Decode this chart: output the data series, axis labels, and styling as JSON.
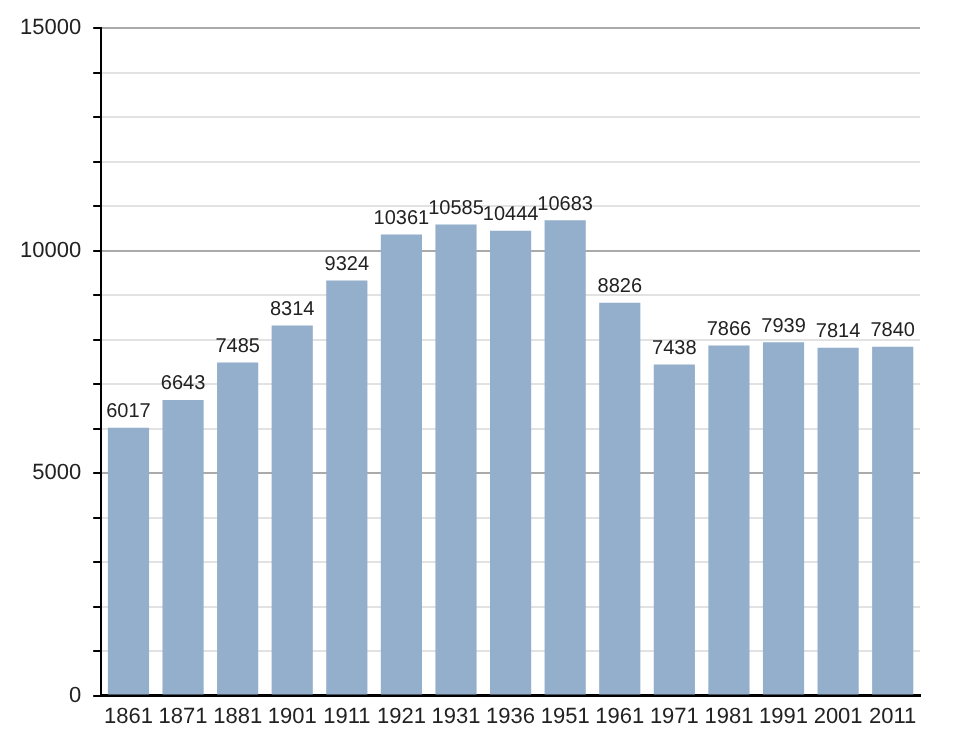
{
  "chart_data": {
    "type": "bar",
    "categories": [
      "1861",
      "1871",
      "1881",
      "1901",
      "1911",
      "1921",
      "1931",
      "1936",
      "1951",
      "1961",
      "1971",
      "1981",
      "1991",
      "2001",
      "2011"
    ],
    "values": [
      6017,
      6643,
      7485,
      8314,
      9324,
      10361,
      10585,
      10444,
      10683,
      8826,
      7438,
      7866,
      7939,
      7814,
      7840
    ],
    "color": "#94afcb",
    "data_labels": true,
    "grid": "y",
    "legend": false,
    "ylim": [
      0,
      15000
    ],
    "yticks": [
      0,
      {
        "value": 1000,
        "label": null
      },
      {
        "value": 2000,
        "label": null
      },
      {
        "value": 3000,
        "label": null
      },
      {
        "value": 4000,
        "label": null
      },
      5000,
      {
        "value": 6000,
        "label": null
      },
      {
        "value": 7000,
        "label": null
      },
      {
        "value": 8000,
        "label": null
      },
      {
        "value": 9000,
        "label": null
      },
      10000,
      {
        "value": 11000,
        "label": null
      },
      {
        "value": 12000,
        "label": null
      },
      {
        "value": 13000,
        "label": null
      },
      {
        "value": 14000,
        "label": null
      },
      15000
    ]
  }
}
